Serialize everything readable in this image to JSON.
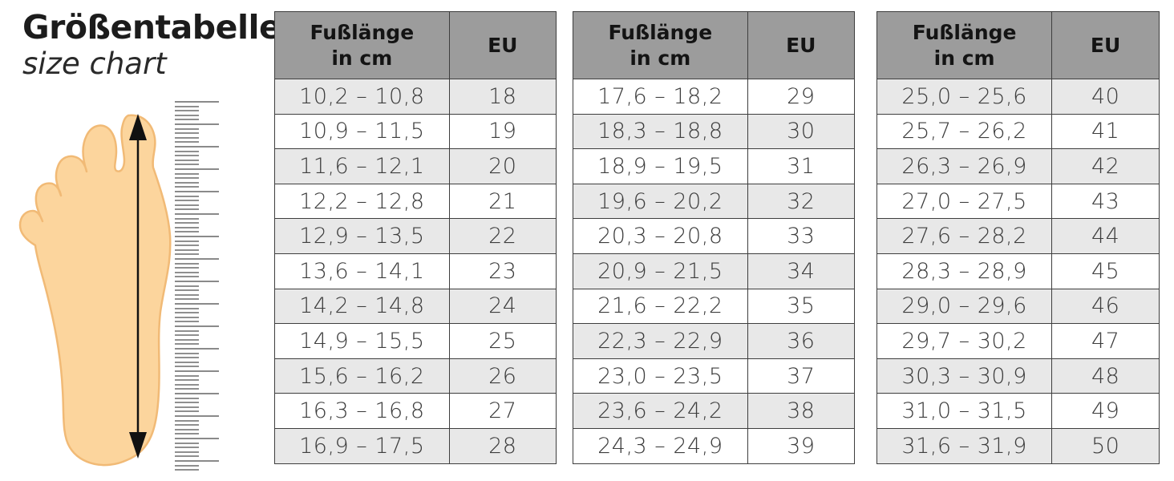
{
  "title": "Größentabelle",
  "subtitle": "size chart",
  "colors": {
    "header_bg": "#9c9c9c",
    "row_alt_bg": "#e8e8e8",
    "row_bg": "#ffffff",
    "border": "#3e3e3e",
    "tick": "#8f8f8f",
    "tick_long": "#8a8a8a",
    "foot_fill": "#fcd59d",
    "foot_stroke": "#f1ba76",
    "arrow": "#111111"
  },
  "illustration": {
    "foot": "foot-top-view",
    "arrow": "foot-length-measure-arrow",
    "ruler": {
      "tick_count": 83,
      "tick_spacing": 5.6,
      "long_every": 5
    }
  },
  "tables": [
    {
      "header": {
        "col1_line1": "Fußlänge",
        "col1_line2": "in cm",
        "col2": "EU"
      },
      "rows": [
        {
          "range": "10,2 – 10,8",
          "eu": "18"
        },
        {
          "range": "10,9 – 11,5",
          "eu": "19"
        },
        {
          "range": "11,6 – 12,1",
          "eu": "20"
        },
        {
          "range": "12,2 – 12,8",
          "eu": "21"
        },
        {
          "range": "12,9 – 13,5",
          "eu": "22"
        },
        {
          "range": "13,6 – 14,1",
          "eu": "23"
        },
        {
          "range": "14,2 – 14,8",
          "eu": "24"
        },
        {
          "range": "14,9 – 15,5",
          "eu": "25"
        },
        {
          "range": "15,6 – 16,2",
          "eu": "26"
        },
        {
          "range": "16,3 – 16,8",
          "eu": "27"
        },
        {
          "range": "16,9 – 17,5",
          "eu": "28"
        }
      ]
    },
    {
      "header": {
        "col1_line1": "Fußlänge",
        "col1_line2": "in cm",
        "col2": "EU"
      },
      "rows": [
        {
          "range": "17,6 – 18,2",
          "eu": "29"
        },
        {
          "range": "18,3 – 18,8",
          "eu": "30"
        },
        {
          "range": "18,9 – 19,5",
          "eu": "31"
        },
        {
          "range": "19,6 – 20,2",
          "eu": "32"
        },
        {
          "range": "20,3 – 20,8",
          "eu": "33"
        },
        {
          "range": "20,9 – 21,5",
          "eu": "34"
        },
        {
          "range": "21,6 – 22,2",
          "eu": "35"
        },
        {
          "range": "22,3 – 22,9",
          "eu": "36"
        },
        {
          "range": "23,0 – 23,5",
          "eu": "37"
        },
        {
          "range": "23,6 – 24,2",
          "eu": "38"
        },
        {
          "range": "24,3 – 24,9",
          "eu": "39"
        }
      ]
    },
    {
      "header": {
        "col1_line1": "Fußlänge",
        "col1_line2": "in cm",
        "col2": "EU"
      },
      "rows": [
        {
          "range": "25,0 – 25,6",
          "eu": "40"
        },
        {
          "range": "25,7 – 26,2",
          "eu": "41"
        },
        {
          "range": "26,3 – 26,9",
          "eu": "42"
        },
        {
          "range": "27,0 – 27,5",
          "eu": "43"
        },
        {
          "range": "27,6 – 28,2",
          "eu": "44"
        },
        {
          "range": "28,3 – 28,9",
          "eu": "45"
        },
        {
          "range": "29,0 – 29,6",
          "eu": "46"
        },
        {
          "range": "29,7 – 30,2",
          "eu": "47"
        },
        {
          "range": "30,3 – 30,9",
          "eu": "48"
        },
        {
          "range": "31,0 – 31,5",
          "eu": "49"
        },
        {
          "range": "31,6 – 31,9",
          "eu": "50"
        }
      ]
    }
  ]
}
